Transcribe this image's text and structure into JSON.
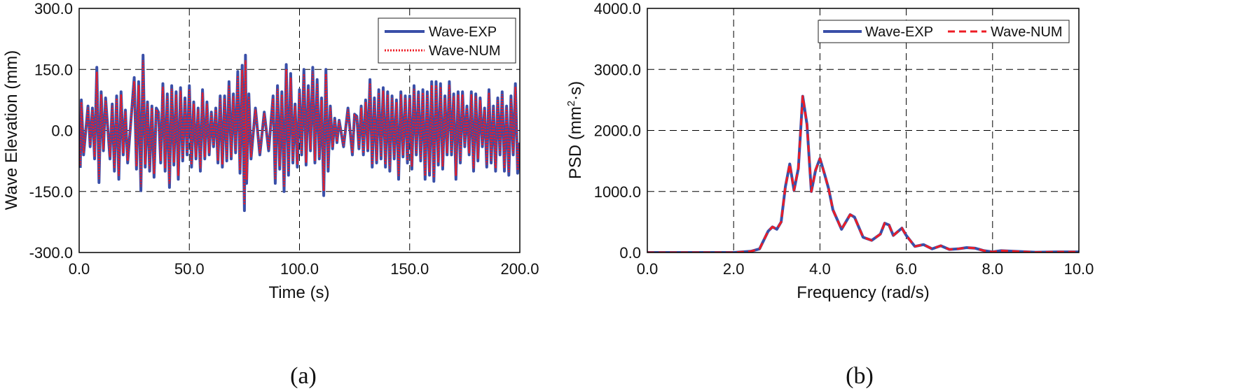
{
  "captions": [
    "(a)",
    "(b)"
  ],
  "colors": {
    "exp": "#3a4fa8",
    "num": "#ee1c25"
  },
  "chart_data": [
    {
      "type": "line",
      "xlabel": "Time (s)",
      "ylabel": "Wave Elevation (mm)",
      "xlim": [
        0,
        200
      ],
      "ylim": [
        -300,
        300
      ],
      "xticks": [
        0,
        50,
        100,
        150,
        200
      ],
      "xtick_labels": [
        "0.0",
        "50.0",
        "100.0",
        "150.0",
        "200.0"
      ],
      "yticks": [
        -300,
        -150,
        0,
        150,
        300
      ],
      "ytick_labels": [
        "-300.0",
        "-150.0",
        "0.0",
        "150.0",
        "300.0"
      ],
      "grid": true,
      "legend_position": "top-right",
      "legend_layout": "vertical",
      "series": [
        {
          "name": "Wave-EXP",
          "style": "solid"
        },
        {
          "name": "Wave-NUM",
          "style": "dotted"
        }
      ],
      "peaks": [
        [
          0.5,
          -92
        ],
        [
          1,
          75
        ],
        [
          2,
          -60
        ],
        [
          4,
          60
        ],
        [
          5,
          -40
        ],
        [
          6,
          55
        ],
        [
          7,
          -70
        ],
        [
          8,
          155
        ],
        [
          9,
          -128
        ],
        [
          10,
          95
        ],
        [
          11,
          -50
        ],
        [
          12,
          80
        ],
        [
          14,
          -70
        ],
        [
          15,
          65
        ],
        [
          16,
          -100
        ],
        [
          17,
          85
        ],
        [
          18,
          -120
        ],
        [
          19,
          95
        ],
        [
          20,
          -60
        ],
        [
          21,
          50
        ],
        [
          22,
          -80
        ],
        [
          24,
          60
        ],
        [
          25,
          130
        ],
        [
          26,
          -95
        ],
        [
          27,
          120
        ],
        [
          28,
          -148
        ],
        [
          29,
          185
        ],
        [
          30,
          -90
        ],
        [
          31,
          70
        ],
        [
          32,
          -100
        ],
        [
          33,
          60
        ],
        [
          34,
          -115
        ],
        [
          35,
          55
        ],
        [
          36,
          45
        ],
        [
          37,
          -80
        ],
        [
          38,
          115
        ],
        [
          39,
          -100
        ],
        [
          40,
          90
        ],
        [
          41,
          -140
        ],
        [
          42,
          110
        ],
        [
          43,
          -85
        ],
        [
          44,
          95
        ],
        [
          45,
          -120
        ],
        [
          46,
          105
        ],
        [
          47,
          -75
        ],
        [
          48,
          80
        ],
        [
          49,
          -60
        ],
        [
          50,
          110
        ],
        [
          51,
          -90
        ],
        [
          52,
          70
        ],
        [
          53,
          -70
        ],
        [
          54,
          55
        ],
        [
          55,
          -100
        ],
        [
          56,
          100
        ],
        [
          57,
          -70
        ],
        [
          58,
          70
        ],
        [
          59,
          -60
        ],
        [
          60,
          45
        ],
        [
          61,
          -40
        ],
        [
          62,
          55
        ],
        [
          63,
          -80
        ],
        [
          64,
          85
        ],
        [
          65,
          -90
        ],
        [
          66,
          85
        ],
        [
          67,
          -75
        ],
        [
          68,
          120
        ],
        [
          69,
          -70
        ],
        [
          70,
          90
        ],
        [
          71,
          -55
        ],
        [
          72,
          145
        ],
        [
          73,
          -105
        ],
        [
          74,
          160
        ],
        [
          75,
          -197
        ],
        [
          75.5,
          185
        ],
        [
          76,
          -130
        ],
        [
          77,
          90
        ],
        [
          78,
          -70
        ],
        [
          80,
          55
        ],
        [
          82,
          -60
        ],
        [
          84,
          45
        ],
        [
          86,
          -50
        ],
        [
          88,
          85
        ],
        [
          89,
          -130
        ],
        [
          90,
          110
        ],
        [
          91,
          -95
        ],
        [
          92,
          95
        ],
        [
          93,
          -150
        ],
        [
          94,
          162
        ],
        [
          95,
          -110
        ],
        [
          96,
          140
        ],
        [
          97,
          -80
        ],
        [
          98,
          65
        ],
        [
          99,
          -90
        ],
        [
          100,
          100
        ],
        [
          101,
          -60
        ],
        [
          102,
          150
        ],
        [
          103,
          -85
        ],
        [
          104,
          110
        ],
        [
          105,
          -50
        ],
        [
          106,
          155
        ],
        [
          107,
          -80
        ],
        [
          108,
          125
        ],
        [
          109,
          -70
        ],
        [
          110,
          80
        ],
        [
          111,
          -160
        ],
        [
          112,
          150
        ],
        [
          113,
          -100
        ],
        [
          114,
          60
        ],
        [
          115,
          -45
        ],
        [
          116,
          30
        ],
        [
          117,
          -30
        ],
        [
          118,
          25
        ],
        [
          120,
          -40
        ],
        [
          122,
          55
        ],
        [
          124,
          -60
        ],
        [
          125,
          40
        ],
        [
          126,
          35
        ],
        [
          127,
          -45
        ],
        [
          128,
          60
        ],
        [
          129,
          -60
        ],
        [
          130,
          75
        ],
        [
          131,
          -50
        ],
        [
          132,
          125
        ],
        [
          133,
          -90
        ],
        [
          134,
          80
        ],
        [
          135,
          -80
        ],
        [
          136,
          100
        ],
        [
          137,
          -70
        ],
        [
          138,
          105
        ],
        [
          139,
          -90
        ],
        [
          140,
          95
        ],
        [
          141,
          -100
        ],
        [
          142,
          85
        ],
        [
          143,
          -70
        ],
        [
          144,
          75
        ],
        [
          145,
          -120
        ],
        [
          146,
          95
        ],
        [
          147,
          -65
        ],
        [
          148,
          85
        ],
        [
          149,
          -80
        ],
        [
          150,
          85
        ],
        [
          151,
          -95
        ],
        [
          152,
          110
        ],
        [
          153,
          -60
        ],
        [
          154,
          95
        ],
        [
          155,
          -75
        ],
        [
          156,
          100
        ],
        [
          157,
          -120
        ],
        [
          158,
          95
        ],
        [
          159,
          -110
        ],
        [
          160,
          120
        ],
        [
          161,
          -125
        ],
        [
          162,
          120
        ],
        [
          163,
          -85
        ],
        [
          164,
          115
        ],
        [
          165,
          -95
        ],
        [
          166,
          85
        ],
        [
          167,
          -60
        ],
        [
          168,
          120
        ],
        [
          169,
          -60
        ],
        [
          170,
          90
        ],
        [
          171,
          -120
        ],
        [
          172,
          95
        ],
        [
          173,
          -80
        ],
        [
          174,
          95
        ],
        [
          175,
          -40
        ],
        [
          176,
          60
        ],
        [
          177,
          -60
        ],
        [
          178,
          95
        ],
        [
          179,
          -100
        ],
        [
          180,
          90
        ],
        [
          181,
          -75
        ],
        [
          182,
          80
        ],
        [
          183,
          -40
        ],
        [
          184,
          55
        ],
        [
          185,
          -90
        ],
        [
          186,
          100
        ],
        [
          187,
          -80
        ],
        [
          188,
          60
        ],
        [
          189,
          -100
        ],
        [
          190,
          80
        ],
        [
          191,
          -60
        ],
        [
          192,
          95
        ],
        [
          193,
          -100
        ],
        [
          194,
          60
        ],
        [
          195,
          -110
        ],
        [
          196,
          85
        ],
        [
          197,
          -60
        ],
        [
          198,
          115
        ],
        [
          199,
          -105
        ],
        [
          200,
          -30
        ]
      ]
    },
    {
      "type": "line",
      "xlabel": "Frequency (rad/s)",
      "ylabel_main": "PSD (mm",
      "ylabel_sup": "2",
      "ylabel_tail": "·s)",
      "xlim": [
        0,
        10
      ],
      "ylim": [
        0,
        4000
      ],
      "xticks": [
        0,
        2,
        4,
        6,
        8,
        10
      ],
      "xtick_labels": [
        "0.0",
        "2.0",
        "4.0",
        "6.0",
        "8.0",
        "10.0"
      ],
      "yticks": [
        0,
        1000,
        2000,
        3000,
        4000
      ],
      "ytick_labels": [
        "0.0",
        "1000.0",
        "2000.0",
        "3000.0",
        "4000.0"
      ],
      "grid": true,
      "legend_position": "top-right",
      "legend_layout": "horizontal",
      "x": [
        0,
        1.0,
        2.0,
        2.4,
        2.6,
        2.8,
        2.9,
        3.0,
        3.1,
        3.2,
        3.3,
        3.4,
        3.5,
        3.6,
        3.7,
        3.8,
        3.9,
        4.0,
        4.1,
        4.2,
        4.3,
        4.5,
        4.7,
        4.8,
        5.0,
        5.2,
        5.4,
        5.5,
        5.6,
        5.7,
        5.9,
        6.0,
        6.2,
        6.4,
        6.6,
        6.8,
        7.0,
        7.2,
        7.4,
        7.6,
        7.8,
        8.0,
        8.2,
        8.5,
        9.0,
        9.5,
        10.0
      ],
      "series": [
        {
          "name": "Wave-EXP",
          "style": "solid",
          "values": [
            0,
            0,
            0,
            20,
            60,
            350,
            420,
            380,
            500,
            1080,
            1450,
            1020,
            1380,
            2560,
            2100,
            1000,
            1350,
            1540,
            1300,
            1050,
            700,
            380,
            620,
            580,
            250,
            200,
            300,
            480,
            450,
            280,
            400,
            280,
            100,
            130,
            60,
            110,
            50,
            60,
            80,
            70,
            30,
            10,
            30,
            20,
            5,
            10,
            10
          ]
        },
        {
          "name": "Wave-NUM",
          "style": "dashed",
          "values": [
            0,
            0,
            0,
            20,
            60,
            350,
            420,
            380,
            500,
            1080,
            1450,
            1020,
            1380,
            2560,
            2100,
            1000,
            1350,
            1540,
            1300,
            1050,
            700,
            380,
            620,
            580,
            250,
            200,
            300,
            480,
            450,
            280,
            400,
            280,
            100,
            130,
            60,
            110,
            50,
            60,
            80,
            70,
            30,
            10,
            30,
            20,
            5,
            10,
            10
          ]
        }
      ]
    }
  ]
}
